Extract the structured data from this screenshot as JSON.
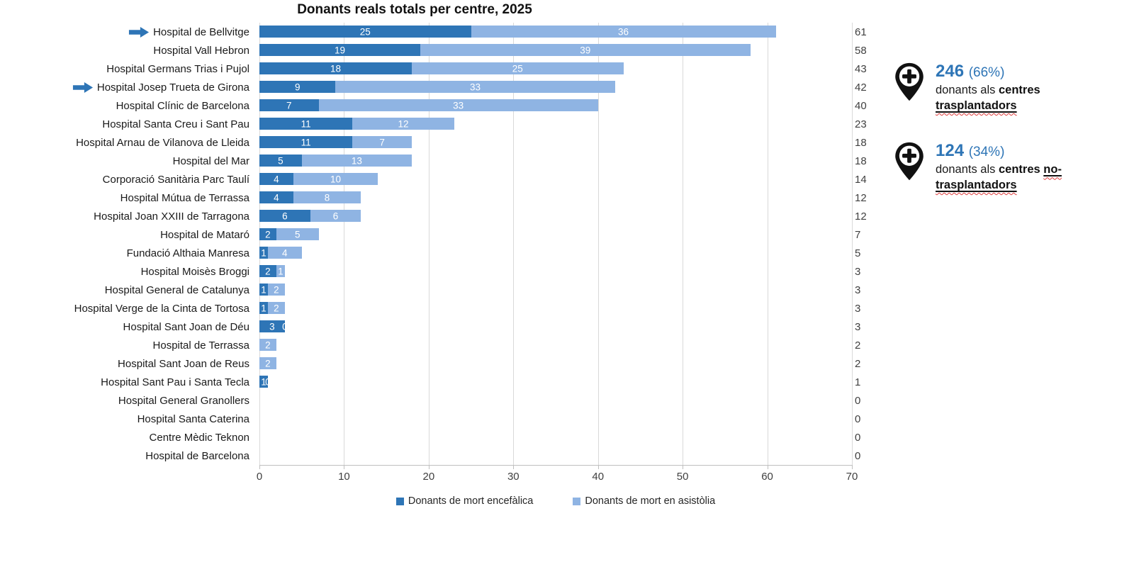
{
  "title": "Donants reals totals per centre, 2025",
  "colors": {
    "encefalica": "#2e75b6",
    "asistolia": "#8fb4e3",
    "gridline": "#d9d9d9",
    "annotation_blue": "#2e75b6",
    "squiggle_red": "#e03c3c"
  },
  "chart_data": {
    "type": "bar",
    "orientation": "horizontal",
    "stacked": true,
    "title": "Donants reals totals per centre, 2025",
    "xlabel": "",
    "ylabel": "",
    "xlim": [
      0,
      70
    ],
    "x_ticks": [
      0,
      10,
      20,
      30,
      40,
      50,
      60,
      70
    ],
    "grid": true,
    "legend_position": "bottom",
    "series_names": [
      "Donants de mort encefàlica",
      "Donants de mort en asistòlia"
    ],
    "rows": [
      {
        "label": "Hospital de Bellvitge",
        "encefalica": 25,
        "asistolia": 36,
        "total": 61,
        "arrow": true
      },
      {
        "label": "Hospital Vall Hebron",
        "encefalica": 19,
        "asistolia": 39,
        "total": 58,
        "arrow": false
      },
      {
        "label": "Hospital Germans Trias i Pujol",
        "encefalica": 18,
        "asistolia": 25,
        "total": 43,
        "arrow": false
      },
      {
        "label": "Hospital Josep Trueta de Girona",
        "encefalica": 9,
        "asistolia": 33,
        "total": 42,
        "arrow": true
      },
      {
        "label": "Hospital Clínic de Barcelona",
        "encefalica": 7,
        "asistolia": 33,
        "total": 40,
        "arrow": false
      },
      {
        "label": "Hospital Santa Creu i Sant Pau",
        "encefalica": 11,
        "asistolia": 12,
        "total": 23,
        "arrow": false
      },
      {
        "label": "Hospital Arnau de Vilanova de Lleida",
        "encefalica": 11,
        "asistolia": 7,
        "total": 18,
        "arrow": false
      },
      {
        "label": "Hospital del Mar",
        "encefalica": 5,
        "asistolia": 13,
        "total": 18,
        "arrow": false
      },
      {
        "label": "Corporació Sanitària Parc Taulí",
        "encefalica": 4,
        "asistolia": 10,
        "total": 14,
        "arrow": false
      },
      {
        "label": "Hospital Mútua de Terrassa",
        "encefalica": 4,
        "asistolia": 8,
        "total": 12,
        "arrow": false
      },
      {
        "label": "Hospital Joan XXIII de Tarragona",
        "encefalica": 6,
        "asistolia": 6,
        "total": 12,
        "arrow": false
      },
      {
        "label": "Hospital de Mataró",
        "encefalica": 2,
        "asistolia": 5,
        "total": 7,
        "arrow": false
      },
      {
        "label": "Fundació Althaia Manresa",
        "encefalica": 1,
        "asistolia": 4,
        "total": 5,
        "arrow": false
      },
      {
        "label": "Hospital Moisès Broggi",
        "encefalica": 2,
        "asistolia": 1,
        "total": 3,
        "arrow": false
      },
      {
        "label": "Hospital General de Catalunya",
        "encefalica": 1,
        "asistolia": 2,
        "total": 3,
        "arrow": false
      },
      {
        "label": "Hospital Verge de la Cinta de Tortosa",
        "encefalica": 1,
        "asistolia": 2,
        "total": 3,
        "arrow": false
      },
      {
        "label": "Hospital Sant Joan de Déu",
        "encefalica": 3,
        "asistolia": 0,
        "total": 3,
        "arrow": false
      },
      {
        "label": "Hospital de Terrassa",
        "encefalica": 0,
        "asistolia": 2,
        "total": 2,
        "arrow": false
      },
      {
        "label": "Hospital Sant Joan de Reus",
        "encefalica": 0,
        "asistolia": 2,
        "total": 2,
        "arrow": false
      },
      {
        "label": "Hospital Sant Pau i Santa Tecla",
        "encefalica": 1,
        "asistolia": 0,
        "total": 1,
        "arrow": false
      },
      {
        "label": "Hospital General Granollers",
        "encefalica": 0,
        "asistolia": 0,
        "total": 0,
        "arrow": false
      },
      {
        "label": "Hospital Santa Caterina",
        "encefalica": 0,
        "asistolia": 0,
        "total": 0,
        "arrow": false
      },
      {
        "label": "Centre Mèdic Teknon",
        "encefalica": 0,
        "asistolia": 0,
        "total": 0,
        "arrow": false
      },
      {
        "label": "Hospital de Barcelona",
        "encefalica": 0,
        "asistolia": 0,
        "total": 0,
        "arrow": false
      }
    ]
  },
  "legend": [
    {
      "label": "Donants de mort encefàlica",
      "color": "#2e75b6"
    },
    {
      "label": "Donants de mort en asistòlia",
      "color": "#8fb4e3"
    }
  ],
  "annotations": [
    {
      "value": "246",
      "pct": "(66%)",
      "prefix": "donants als",
      "bold": "centres",
      "underlined": "trasplantadors",
      "icon": "map-pin-plus-icon"
    },
    {
      "value": "124",
      "pct": "(34%)",
      "prefix": "donants als",
      "bold": "centres",
      "underlined": "no-trasplantadors",
      "icon": "map-pin-plus-icon"
    }
  ]
}
